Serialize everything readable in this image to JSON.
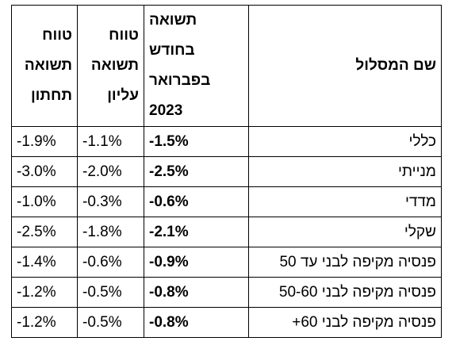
{
  "headers": {
    "name": "שם המסלול",
    "feb": "תשואה בחודש בפברואר 2023",
    "feb_lines": [
      "תשואה",
      "בחודש",
      "בפברואר",
      "2023"
    ],
    "high_lines": [
      "טווח",
      "תשואה",
      "עליון"
    ],
    "low_lines": [
      "טווח",
      "תשואה",
      "תחתון"
    ]
  },
  "rows": [
    {
      "name": "כללי",
      "feb": "-1.5%",
      "high": "-1.1%",
      "low": "-1.9%"
    },
    {
      "name": "מנייתי",
      "feb": "-2.5%",
      "high": "-2.0%",
      "low": "-3.0%"
    },
    {
      "name": "מדדי",
      "feb": "-0.6%",
      "high": "-0.3%",
      "low": "-1.0%"
    },
    {
      "name": "שקלי",
      "feb": "-2.1%",
      "high": "-1.8%",
      "low": "-2.5%"
    },
    {
      "name": "פנסיה מקיפה לבני עד 50",
      "feb": "-0.9%",
      "high": "-0.6%",
      "low": "-1.4%"
    },
    {
      "name": "פנסיה מקיפה לבני 50-60",
      "feb": "-0.8%",
      "high": "-0.5%",
      "low": "-1.2%"
    },
    {
      "name": "פנסיה מקיפה לבני 60+",
      "feb": "-0.8%",
      "high": "-0.5%",
      "low": "-1.2%"
    }
  ]
}
